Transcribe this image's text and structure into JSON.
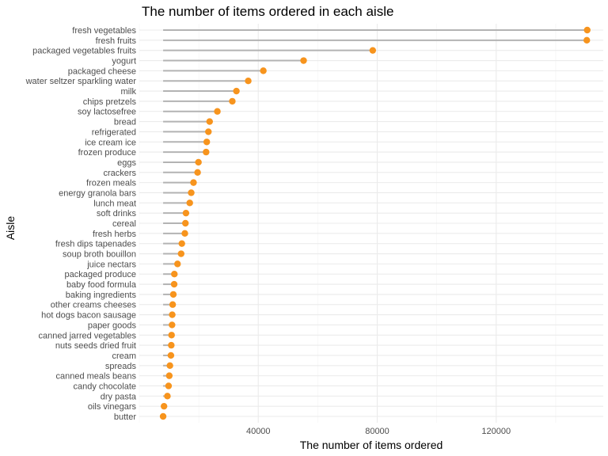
{
  "chart_data": {
    "type": "lollipop",
    "title": "The number of items ordered in each aisle",
    "xlabel": "The number of items ordered",
    "ylabel": "Aisle",
    "xlim": [
      0,
      156000
    ],
    "xticks": [
      40000,
      80000,
      120000
    ],
    "xtick_labels": [
      "40000",
      "80000",
      "120000"
    ],
    "segment_start": 8000,
    "grid": true,
    "legend": "none",
    "colors": {
      "point": "#f7941d",
      "segment": "#b3b3b3",
      "grid": "#ebebeb"
    },
    "categories": [
      "fresh vegetables",
      "fresh fruits",
      "packaged vegetables fruits",
      "yogurt",
      "packaged cheese",
      "water seltzer sparkling water",
      "milk",
      "chips pretzels",
      "soy lactosefree",
      "bread",
      "refrigerated",
      "ice cream ice",
      "frozen produce",
      "eggs",
      "crackers",
      "frozen meals",
      "energy granola bars",
      "lunch meat",
      "soft drinks",
      "cereal",
      "fresh herbs",
      "fresh dips tapenades",
      "soup broth bouillon",
      "juice nectars",
      "packaged produce",
      "baby food formula",
      "baking ingredients",
      "other creams cheeses",
      "hot dogs bacon sausage",
      "paper goods",
      "canned jarred vegetables",
      "nuts seeds dried fruit",
      "cream",
      "spreads",
      "canned meals beans",
      "candy chocolate",
      "dry pasta",
      "oils vinegars",
      "butter"
    ],
    "values": [
      150609,
      150473,
      78493,
      55240,
      41699,
      36617,
      32644,
      31269,
      26240,
      23635,
      23228,
      22676,
      22453,
      19875,
      19592,
      18221,
      17449,
      16957,
      15679,
      15498,
      15308,
      14296,
      14056,
      12844,
      11783,
      11710,
      11437,
      11208,
      11064,
      10996,
      10842,
      10741,
      10619,
      10285,
      10075,
      9835,
      9443,
      8300,
      8000
    ]
  }
}
